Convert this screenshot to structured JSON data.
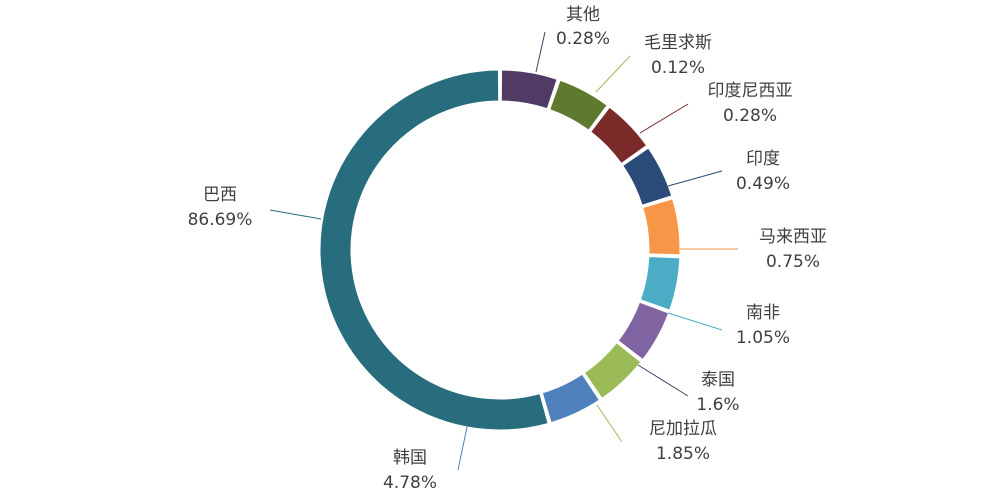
{
  "chart_data": {
    "type": "pie",
    "variant": "donut",
    "categories": [
      "其他",
      "毛里求斯",
      "印度尼西亚",
      "印度",
      "马来西亚",
      "南非",
      "泰国",
      "尼加拉瓜",
      "韩国",
      "巴西"
    ],
    "display_values": [
      "0.28%",
      "0.12%",
      "0.28%",
      "0.49%",
      "0.75%",
      "1.05%",
      "1.6%",
      "1.85%",
      "4.78%",
      "86.69%"
    ],
    "values": [
      0.28,
      0.12,
      0.28,
      0.49,
      0.75,
      1.05,
      1.6,
      1.85,
      4.78,
      86.69
    ],
    "colors": [
      "#4f3b63",
      "#5f7a2e",
      "#7a2a29",
      "#2a4a78",
      "#f79646",
      "#4bacc6",
      "#8064a2",
      "#9bbb59",
      "#4f81bd",
      "#276d7d"
    ],
    "label_line_colors": [
      "#4f3b63",
      "#9bbb59",
      "#7a2a29",
      "#2a4a78",
      "#f79646",
      "#4bacc6",
      "#4f3b63",
      "#9bbb59",
      "#4f81bd",
      "#276d7d"
    ],
    "legend": "none"
  }
}
